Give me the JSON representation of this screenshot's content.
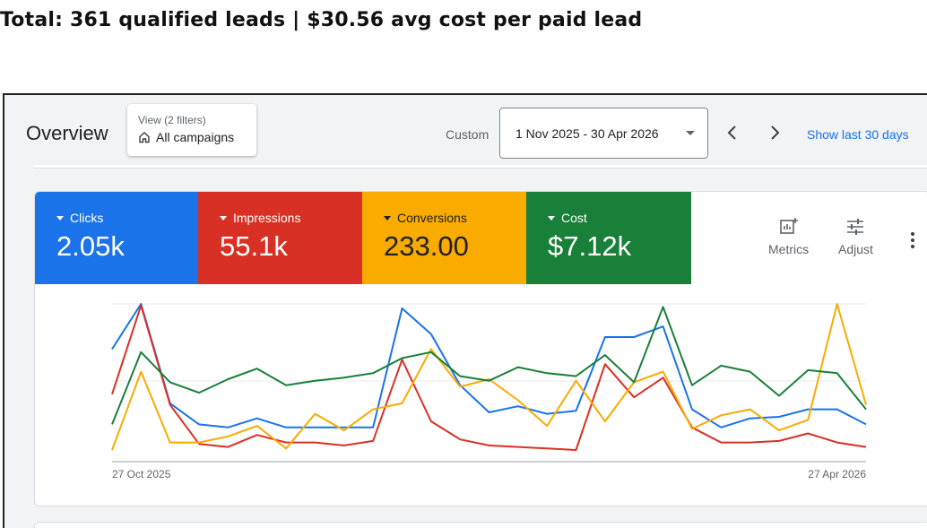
{
  "headline": "Total: 361 qualified leads | $30.56 avg cost per paid lead",
  "header": {
    "title": "Overview",
    "view_filters": "View (2 filters)",
    "view_selection": "All campaigns",
    "custom_label": "Custom",
    "date_range": "1 Nov 2025 - 30 Apr 2026",
    "show_last": "Show last 30 days"
  },
  "metrics": [
    {
      "label": "Clicks",
      "value": "2.05k",
      "color": "#1a73e8"
    },
    {
      "label": "Impressions",
      "value": "55.1k",
      "color": "#d93025"
    },
    {
      "label": "Conversions",
      "value": "233.00",
      "color": "#f9ab00"
    },
    {
      "label": "Cost",
      "value": "$7.12k",
      "color": "#188038"
    }
  ],
  "tools": {
    "metrics_label": "Metrics",
    "adjust_label": "Adjust"
  },
  "chart_data": {
    "type": "line",
    "x_start_label": "27 Oct 2025",
    "x_end_label": "27 Apr 2026",
    "series": [
      {
        "color": "#1a73e8",
        "values": [
          70,
          100,
          34,
          20,
          18,
          24,
          18,
          18,
          18,
          18,
          97,
          80,
          46,
          28,
          32,
          27,
          29,
          78,
          78,
          85,
          30,
          18,
          24,
          25,
          30,
          30,
          20
        ]
      },
      {
        "color": "#d93025",
        "values": [
          40,
          99,
          33,
          7,
          5,
          13,
          8,
          8,
          6,
          9,
          63,
          22,
          10,
          6,
          5,
          4,
          3,
          60,
          38,
          51,
          18,
          8,
          8,
          9,
          14,
          8,
          5
        ]
      },
      {
        "color": "#f9ab00",
        "values": [
          3,
          55,
          8,
          8,
          12,
          19,
          4,
          27,
          16,
          30,
          34,
          70,
          45,
          50,
          36,
          19,
          49,
          22,
          48,
          55,
          17,
          26,
          30,
          16,
          23,
          100,
          33
        ]
      },
      {
        "color": "#188038",
        "values": [
          20,
          68,
          48,
          41,
          50,
          57,
          46,
          49,
          51,
          54,
          64,
          68,
          52,
          49,
          58,
          54,
          52,
          66,
          48,
          98,
          46,
          59,
          55,
          39,
          56,
          54,
          30
        ]
      }
    ]
  }
}
